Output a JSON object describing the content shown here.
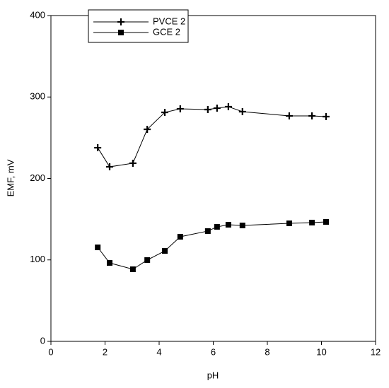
{
  "chart_data": {
    "type": "line",
    "x_label": "pH",
    "y_label": "EMF, mV",
    "x": [
      1.73,
      2.17,
      3.03,
      3.56,
      4.21,
      4.78,
      5.8,
      6.14,
      6.56,
      7.08,
      8.81,
      9.65,
      10.17
    ],
    "series": [
      {
        "name": "PVCE 2",
        "color": "#000000",
        "marker": "plus",
        "values": [
          237.7,
          214.3,
          218.7,
          260.3,
          281.1,
          285.5,
          284.6,
          286.3,
          288.1,
          282.0,
          276.8,
          276.8,
          275.9
        ]
      },
      {
        "name": "GCE 2",
        "color": "#000000",
        "marker": "square",
        "values": [
          115.4,
          96.3,
          88.5,
          99.8,
          111.0,
          128.4,
          135.4,
          140.6,
          143.2,
          142.3,
          144.9,
          145.8,
          146.6
        ]
      }
    ],
    "xlim": [
      0,
      12
    ],
    "ylim": [
      0,
      400
    ],
    "xticks": [
      0,
      2,
      4,
      6,
      8,
      10,
      12
    ],
    "yticks": [
      0,
      100,
      200,
      300,
      400
    ],
    "legend": "upper-left"
  }
}
